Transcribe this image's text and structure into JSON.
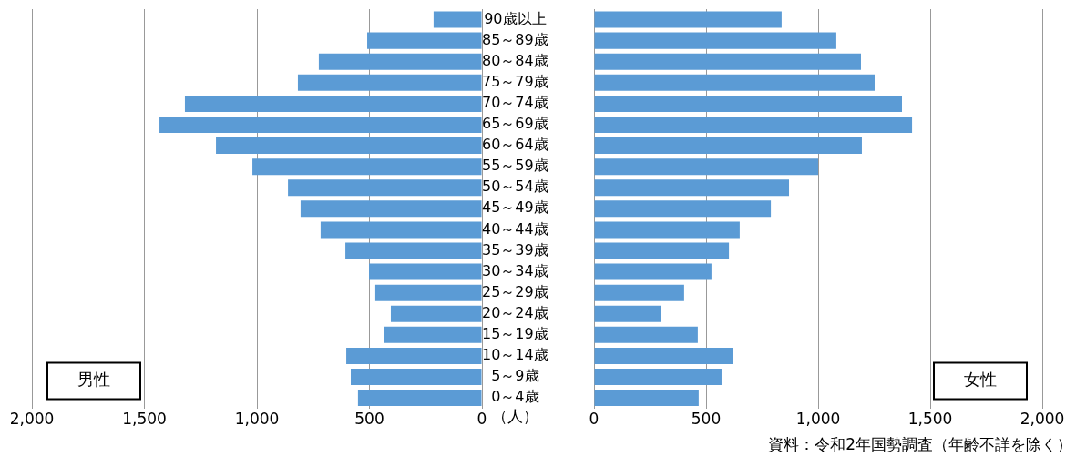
{
  "chart_data": [
    {
      "type": "bar",
      "orientation": "horizontal",
      "categories": [
        "90歳以上",
        "85～89歳",
        "80～84歳",
        "75～79歳",
        "70～74歳",
        "65～69歳",
        "60～64歳",
        "55～59歳",
        "50～54歳",
        "45～49歳",
        "40～44歳",
        "35～39歳",
        "30～34歳",
        "25～29歳",
        "20～24歳",
        "15～19歳",
        "10～14歳",
        "5～9歳",
        "0～4歳"
      ],
      "values": [
        215,
        510,
        725,
        818,
        1320,
        1433,
        1182,
        1020,
        862,
        806,
        717,
        607,
        502,
        474,
        405,
        437,
        603,
        583,
        551
      ],
      "color": "#5b9bd5",
      "xlim": [
        2000,
        0
      ],
      "xticks": [
        {
          "value": 2000,
          "label": "2,000"
        },
        {
          "value": 1500,
          "label": "1,500"
        },
        {
          "value": 1000,
          "label": "1,000"
        },
        {
          "value": 500,
          "label": "500"
        },
        {
          "value": 0,
          "label": "0"
        }
      ],
      "grid": "x",
      "xlabel": "（人）",
      "annotations": [
        "男性"
      ]
    },
    {
      "type": "bar",
      "orientation": "horizontal",
      "values": [
        837,
        1081,
        1191,
        1252,
        1374,
        1419,
        1195,
        1000,
        870,
        789,
        650,
        602,
        524,
        402,
        297,
        463,
        618,
        569,
        467
      ],
      "color": "#5b9bd5",
      "xlim": [
        0,
        2000
      ],
      "xticks": [
        {
          "value": 0,
          "label": "0"
        },
        {
          "value": 500,
          "label": "500"
        },
        {
          "value": 1000,
          "label": "1,000"
        },
        {
          "value": 1500,
          "label": "1,500"
        },
        {
          "value": 2000,
          "label": "2,000"
        }
      ],
      "grid": "x",
      "tick_labels": "x",
      "annotations": [
        "女性",
        "資料：令和2年国勢調査（年齢不詳を除く）"
      ]
    }
  ]
}
